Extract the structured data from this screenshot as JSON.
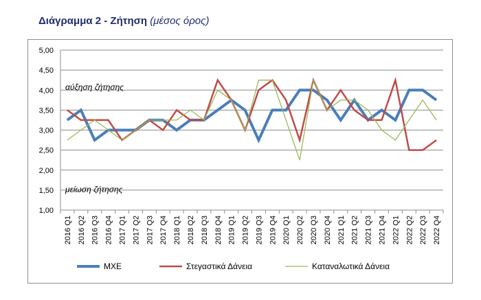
{
  "header": {
    "title": "Διάγραμμα 2 - Ζήτηση",
    "subtitle": "(μέσος όρος)"
  },
  "chart_data": {
    "type": "line",
    "categories": [
      "2016 Q1",
      "2016 Q2",
      "2016 Q3",
      "2016 Q4",
      "2017 Q1",
      "2017 Q2",
      "2017 Q3",
      "2017 Q4",
      "2018 Q1",
      "2018 Q2",
      "2018 Q3",
      "2018 Q4",
      "2019 Q1",
      "2019 Q2",
      "2019 Q3",
      "2019 Q4",
      "2020 Q1",
      "2020 Q2",
      "2020 Q3",
      "2020 Q4",
      "2021 Q1",
      "2021 Q2",
      "2021 Q3",
      "2021 Q4",
      "2022 Q1",
      "2022 Q2",
      "2022 Q3",
      "2022 Q4"
    ],
    "series": [
      {
        "name": "ΜΧΕ",
        "color": "#4a7ebb",
        "values": [
          3.25,
          3.5,
          2.75,
          3.0,
          3.0,
          3.0,
          3.25,
          3.25,
          3.0,
          3.25,
          3.25,
          3.5,
          3.75,
          3.5,
          2.75,
          3.5,
          3.5,
          4.0,
          4.0,
          3.75,
          3.25,
          3.75,
          3.25,
          3.5,
          3.25,
          4.0,
          4.0,
          3.75
        ]
      },
      {
        "name": "Στεγαστικά Δάνεια",
        "color": "#be4b48",
        "values": [
          3.5,
          3.25,
          3.25,
          3.25,
          2.75,
          3.0,
          3.25,
          3.0,
          3.5,
          3.25,
          3.25,
          4.25,
          3.75,
          3.0,
          4.0,
          4.25,
          3.75,
          2.75,
          4.25,
          3.5,
          4.0,
          3.5,
          3.25,
          3.25,
          4.25,
          2.5,
          2.5,
          2.75
        ]
      },
      {
        "name": "Καταναλωτικά Δάνεια",
        "color": "#98b954",
        "values": [
          2.75,
          3.0,
          3.25,
          3.0,
          2.75,
          3.0,
          3.25,
          3.25,
          3.25,
          3.5,
          3.25,
          4.0,
          3.75,
          3.0,
          4.25,
          4.25,
          3.25,
          2.25,
          4.25,
          3.5,
          3.75,
          3.75,
          3.5,
          3.0,
          2.75,
          3.25,
          3.75,
          3.25
        ]
      }
    ],
    "yticks": [
      "1,00",
      "1,50",
      "2,00",
      "2,50",
      "3,00",
      "3,50",
      "4,00",
      "4,50",
      "5,00"
    ],
    "ylim": [
      1.0,
      5.0
    ],
    "annotations": [
      "αύξηση ζήτησης",
      "μείωση ζήτησης"
    ],
    "legend_position": "bottom",
    "grid": true
  }
}
